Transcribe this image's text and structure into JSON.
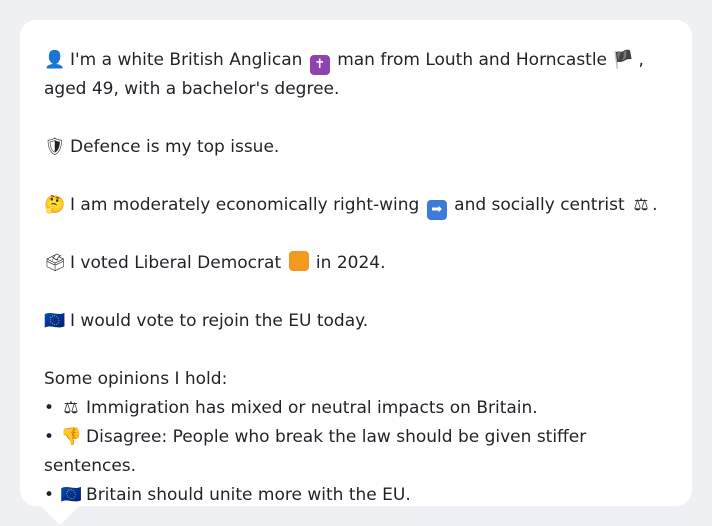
{
  "profile": {
    "intro_before": "I'm a white British Anglican",
    "intro_mid": "man from Louth and Horncastle",
    "intro_after": ", aged 49, with a bachelor's degree.",
    "top_issue": "Defence is my top issue.",
    "econ_before": "I am moderately economically right-wing",
    "econ_after": "and socially centrist",
    "econ_end": ".",
    "vote_before": "I voted Liberal Democrat",
    "vote_after": "in 2024.",
    "eu": "I would vote to rejoin the EU today.",
    "opinions_title": "Some opinions I hold:",
    "opinions": [
      "Immigration has mixed or neutral impacts on Britain.",
      "Disagree: People who break the law should be given stiffer sentences.",
      "Britain should unite more with the EU."
    ],
    "bullet": "•"
  },
  "icons": {
    "person": "👤",
    "cross": "✝",
    "england_flag": "🏴",
    "shield": "🛡",
    "thinking": "🤔",
    "right_arrow": "➡",
    "scales": "⚖",
    "ballot": "🗳",
    "eu_flag": "🇪🇺",
    "thumbs_down": "👎"
  },
  "colors": {
    "cross_box": "#8e44ad",
    "arrow_box": "#3d7bd9",
    "libdem_box": "#f39a1e"
  }
}
